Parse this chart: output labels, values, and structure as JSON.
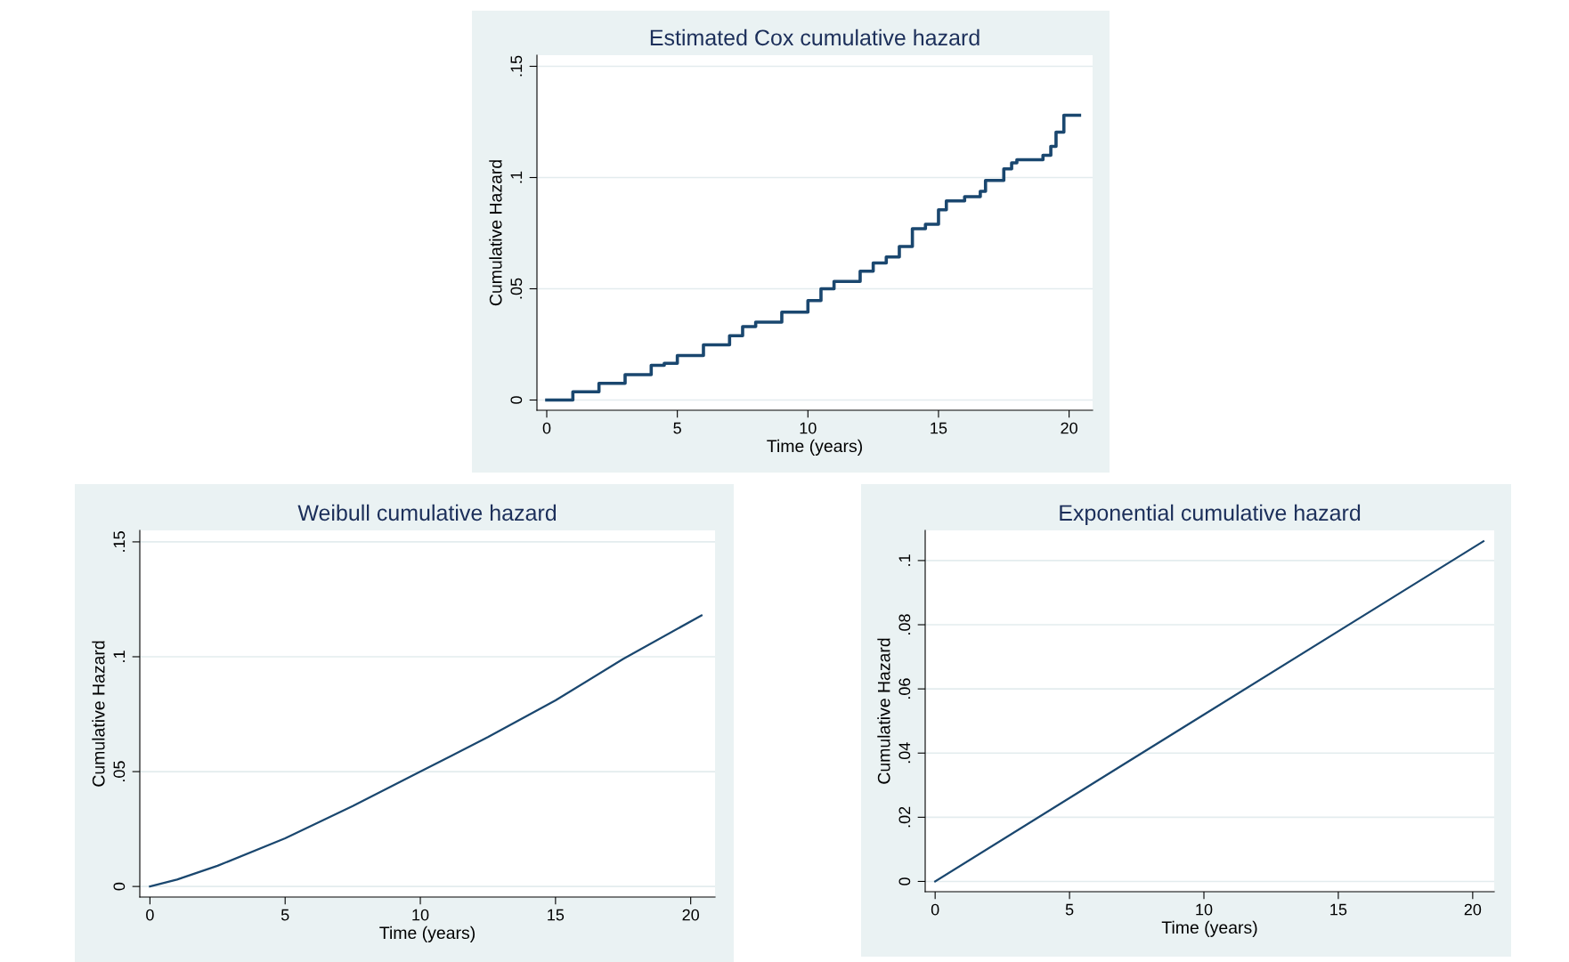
{
  "chart_data": [
    {
      "type": "step",
      "title": "Estimated Cox cumulative hazard",
      "xlabel": "Time (years)",
      "ylabel": "Cumulative Hazard",
      "series": [
        {
          "color": "#1a476f",
          "x": [
            0,
            1,
            2,
            3,
            4,
            4.5,
            5,
            6,
            7,
            7.5,
            8,
            9,
            10,
            10.5,
            11,
            12,
            12.5,
            13,
            13.5,
            14,
            14.5,
            15,
            15.3,
            16,
            16.6,
            16.8,
            17.5,
            17.8,
            18,
            19,
            19.3,
            19.5,
            19.8,
            20.4
          ],
          "values": [
            0,
            0.0037,
            0.0075,
            0.0114,
            0.0156,
            0.0165,
            0.02,
            0.0248,
            0.0289,
            0.033,
            0.035,
            0.0395,
            0.0447,
            0.05,
            0.0533,
            0.0579,
            0.0616,
            0.0643,
            0.069,
            0.077,
            0.079,
            0.0855,
            0.0895,
            0.0914,
            0.0938,
            0.0987,
            0.1039,
            0.1066,
            0.108,
            0.11,
            0.114,
            0.1204,
            0.128,
            0.128
          ]
        }
      ],
      "xlim": [
        -0.375,
        20.9
      ],
      "ylim": [
        -0.0046,
        0.155
      ],
      "xticks": [
        0,
        5,
        10,
        15,
        20
      ],
      "yticks": [
        {
          "value": 0,
          "label": "0"
        },
        {
          "value": 0.05,
          "label": ".05"
        },
        {
          "value": 0.1,
          "label": ".1"
        },
        {
          "value": 0.15,
          "label": ".15"
        }
      ],
      "grid": "y"
    },
    {
      "type": "line",
      "title": "Weibull cumulative hazard",
      "xlabel": "Time (years)",
      "ylabel": "Cumulative Hazard",
      "series": [
        {
          "color": "#1a476f",
          "x": [
            0,
            1,
            2.5,
            5,
            7.5,
            10,
            12.5,
            15,
            17.5,
            20.4
          ],
          "values": [
            0,
            0.003,
            0.009,
            0.021,
            0.035,
            0.05,
            0.065,
            0.081,
            0.099,
            0.118
          ]
        }
      ],
      "xlim": [
        -0.375,
        20.9
      ],
      "ylim": [
        -0.0046,
        0.155
      ],
      "xticks": [
        0,
        5,
        10,
        15,
        20
      ],
      "yticks": [
        {
          "value": 0,
          "label": "0"
        },
        {
          "value": 0.05,
          "label": ".05"
        },
        {
          "value": 0.1,
          "label": ".1"
        },
        {
          "value": 0.15,
          "label": ".15"
        }
      ],
      "grid": "y"
    },
    {
      "type": "line",
      "title": "Exponential cumulative hazard",
      "xlabel": "Time (years)",
      "ylabel": "Cumulative Hazard",
      "series": [
        {
          "color": "#1a476f",
          "x": [
            0,
            10,
            20.4
          ],
          "values": [
            0,
            0.052,
            0.106
          ]
        }
      ],
      "xlim": [
        -0.37,
        20.8
      ],
      "ylim": [
        -0.0032,
        0.1094
      ],
      "xticks": [
        0,
        5,
        10,
        15,
        20
      ],
      "yticks": [
        {
          "value": 0,
          "label": "0"
        },
        {
          "value": 0.02,
          "label": ".02"
        },
        {
          "value": 0.04,
          "label": ".04"
        },
        {
          "value": 0.06,
          "label": ".06"
        },
        {
          "value": 0.08,
          "label": ".08"
        },
        {
          "value": 0.1,
          "label": ".1"
        }
      ],
      "grid": "y"
    }
  ]
}
